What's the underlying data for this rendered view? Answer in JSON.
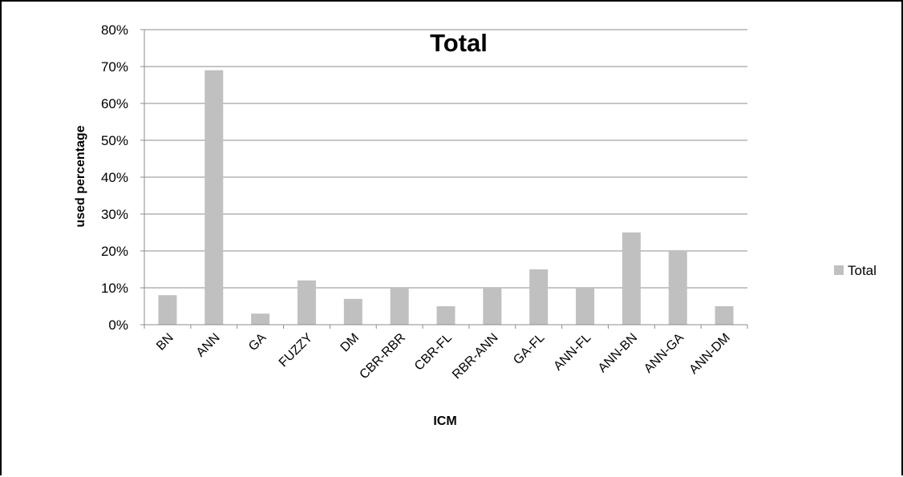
{
  "chart_data": {
    "type": "bar",
    "title": "Total",
    "xlabel": "ICM",
    "ylabel": "used percentage",
    "categories": [
      "BN",
      "ANN",
      "GA",
      "FUZZY",
      "DM",
      "CBR-RBR",
      "CBR-FL",
      "RBR-ANN",
      "GA-FL",
      "ANN-FL",
      "ANN-BN",
      "ANN-GA",
      "ANN-DM"
    ],
    "series": [
      {
        "name": "Total",
        "values": [
          8,
          69,
          3,
          12,
          7,
          10,
          5,
          10,
          15,
          10,
          25,
          20,
          5
        ]
      }
    ],
    "ylim": [
      0,
      80
    ],
    "yticks": [
      "0%",
      "10%",
      "20%",
      "30%",
      "40%",
      "50%",
      "60%",
      "70%",
      "80%"
    ],
    "grid": true,
    "legend_position": "right",
    "bar_color": "#c0c0c0",
    "grid_color": "#8c8c8c"
  }
}
